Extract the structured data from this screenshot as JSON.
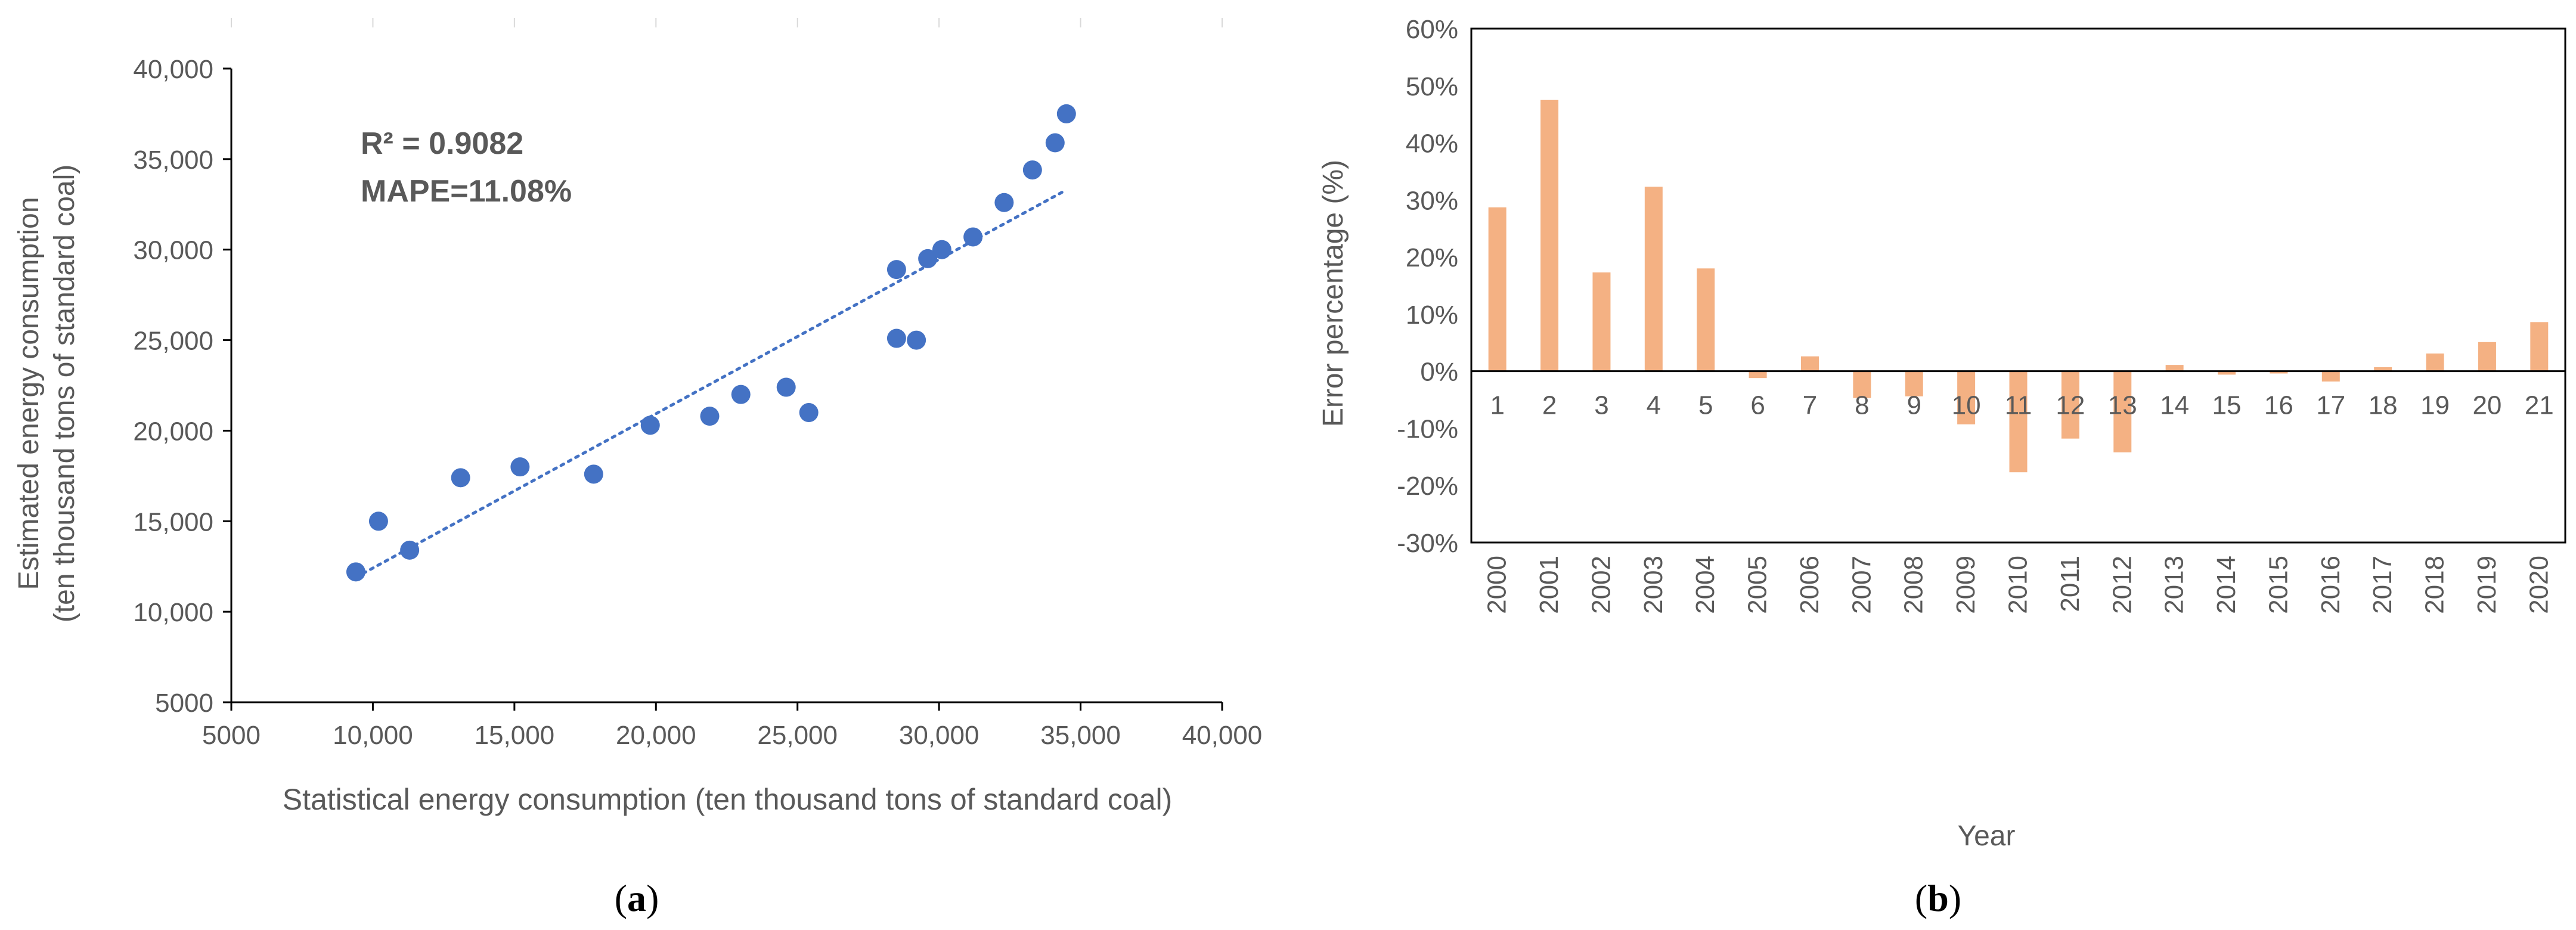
{
  "colors": {
    "scatter": "#4472c4",
    "bar": "#f4b183",
    "axis": "#000000",
    "text": "#595959",
    "gridtick": "#d9d9d9"
  },
  "panels": {
    "a": {
      "label_letter": "a",
      "label_open": "(",
      "label_close": ")"
    },
    "b": {
      "label_letter": "b",
      "label_open": "(",
      "label_close": ")"
    }
  },
  "chart_data": [
    {
      "type": "scatter",
      "xlabel": "Statistical energy consumption (ten thousand tons of standard coal)",
      "ylabel_line1": "Estimated energy consumption",
      "ylabel_line2": "(ten thousand tons of standard coal)",
      "xlim": [
        5000,
        40000
      ],
      "ylim": [
        5000,
        40000
      ],
      "xticks": [
        5000,
        10000,
        15000,
        20000,
        25000,
        30000,
        35000,
        40000
      ],
      "xtick_labels": [
        "5000",
        "10,000",
        "15,000",
        "20,000",
        "25,000",
        "30,000",
        "35,000",
        "40,000"
      ],
      "yticks": [
        5000,
        10000,
        15000,
        20000,
        25000,
        30000,
        35000,
        40000
      ],
      "ytick_labels": [
        "5000",
        "10,000",
        "15,000",
        "20,000",
        "25,000",
        "30,000",
        "35,000",
        "40,000"
      ],
      "annotation_r2": "R² = 0.9082",
      "annotation_mape": "MAPE=11.08%",
      "points": [
        {
          "x": 9400,
          "y": 12200
        },
        {
          "x": 10200,
          "y": 15000
        },
        {
          "x": 11300,
          "y": 13400
        },
        {
          "x": 13100,
          "y": 17400
        },
        {
          "x": 15200,
          "y": 18000
        },
        {
          "x": 17800,
          "y": 17600
        },
        {
          "x": 19800,
          "y": 20300
        },
        {
          "x": 21900,
          "y": 20800
        },
        {
          "x": 23000,
          "y": 22000
        },
        {
          "x": 24600,
          "y": 22400
        },
        {
          "x": 25400,
          "y": 21000
        },
        {
          "x": 28500,
          "y": 25100
        },
        {
          "x": 29200,
          "y": 25000
        },
        {
          "x": 28500,
          "y": 28900
        },
        {
          "x": 29600,
          "y": 29500
        },
        {
          "x": 30100,
          "y": 30000
        },
        {
          "x": 31200,
          "y": 30700
        },
        {
          "x": 32300,
          "y": 32600
        },
        {
          "x": 33300,
          "y": 34400
        },
        {
          "x": 34100,
          "y": 35900
        },
        {
          "x": 34500,
          "y": 37500
        }
      ],
      "trendline": {
        "x_start": 9400,
        "y_start": 11900,
        "x_end": 34500,
        "y_end": 33300,
        "style": "dotted"
      }
    },
    {
      "type": "bar",
      "xlabel": "Year",
      "ylabel": "Error percentage (%)",
      "ylim": [
        -30,
        60
      ],
      "yticks": [
        -30,
        -20,
        -10,
        0,
        10,
        20,
        30,
        40,
        50,
        60
      ],
      "ytick_labels": [
        "-30%",
        "-20%",
        "-10%",
        "0%",
        "10%",
        "20%",
        "30%",
        "40%",
        "50%",
        "60%"
      ],
      "index_labels": [
        "1",
        "2",
        "3",
        "4",
        "5",
        "6",
        "7",
        "8",
        "9",
        "10",
        "11",
        "12",
        "13",
        "14",
        "15",
        "16",
        "17",
        "18",
        "19",
        "20",
        "21"
      ],
      "categories": [
        "2000",
        "2001",
        "2002",
        "2003",
        "2004",
        "2005",
        "2006",
        "2007",
        "2008",
        "2009",
        "2010",
        "2011",
        "2012",
        "2013",
        "2014",
        "2015",
        "2016",
        "2017",
        "2018",
        "2019",
        "2020"
      ],
      "values": [
        28.7,
        47.5,
        17.3,
        32.3,
        18.0,
        -1.2,
        2.6,
        -4.7,
        -4.4,
        -9.3,
        -17.7,
        -11.8,
        -14.2,
        1.1,
        -0.6,
        -0.4,
        -1.8,
        0.7,
        3.1,
        5.1,
        8.6
      ]
    }
  ]
}
